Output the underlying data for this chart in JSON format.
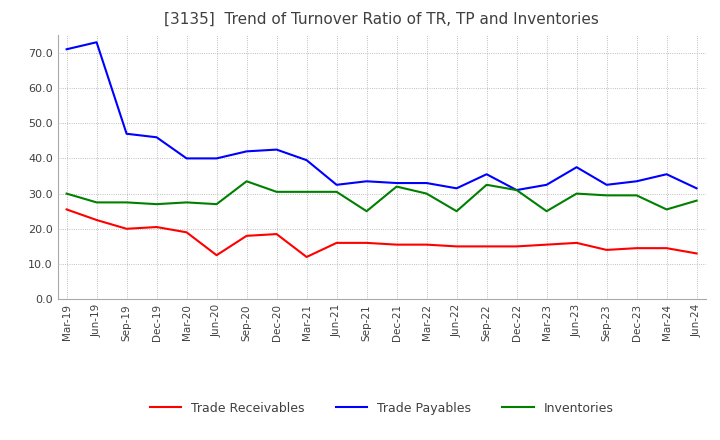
{
  "title": "[3135]  Trend of Turnover Ratio of TR, TP and Inventories",
  "x_labels": [
    "Mar-19",
    "Jun-19",
    "Sep-19",
    "Dec-19",
    "Mar-20",
    "Jun-20",
    "Sep-20",
    "Dec-20",
    "Mar-21",
    "Jun-21",
    "Sep-21",
    "Dec-21",
    "Mar-22",
    "Jun-22",
    "Sep-22",
    "Dec-22",
    "Mar-23",
    "Jun-23",
    "Sep-23",
    "Dec-23",
    "Mar-24",
    "Jun-24"
  ],
  "trade_receivables": [
    25.5,
    22.5,
    20.0,
    20.5,
    19.0,
    12.5,
    18.0,
    18.5,
    12.0,
    16.0,
    16.0,
    15.5,
    15.5,
    15.0,
    15.0,
    15.0,
    15.5,
    16.0,
    14.0,
    14.5,
    14.5,
    13.0
  ],
  "trade_payables": [
    71.0,
    73.0,
    47.0,
    46.0,
    40.0,
    40.0,
    42.0,
    42.5,
    39.5,
    32.5,
    33.5,
    33.0,
    33.0,
    31.5,
    35.5,
    31.0,
    32.5,
    37.5,
    32.5,
    33.5,
    35.5,
    31.5
  ],
  "inventories": [
    30.0,
    27.5,
    27.5,
    27.0,
    27.5,
    27.0,
    33.5,
    30.5,
    30.5,
    30.5,
    25.0,
    32.0,
    30.0,
    25.0,
    32.5,
    31.0,
    25.0,
    30.0,
    29.5,
    29.5,
    25.5,
    28.0
  ],
  "ylim": [
    0,
    75
  ],
  "yticks": [
    0.0,
    10.0,
    20.0,
    30.0,
    40.0,
    50.0,
    60.0,
    70.0
  ],
  "tr_color": "#ff0000",
  "tp_color": "#0000ff",
  "inv_color": "#008000",
  "bg_color": "#ffffff",
  "grid_color": "#aaaaaa",
  "title_color": "#404040",
  "legend_labels": [
    "Trade Receivables",
    "Trade Payables",
    "Inventories"
  ]
}
